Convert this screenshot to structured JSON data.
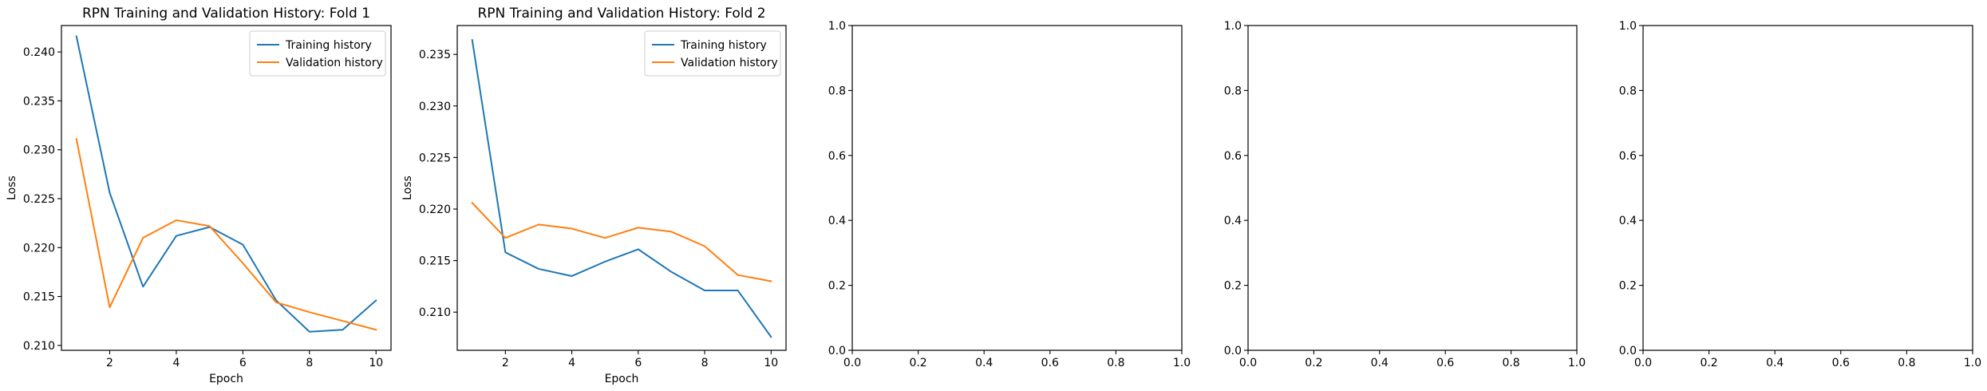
{
  "chart_data": [
    {
      "type": "line",
      "title": "RPN Training and Validation History: Fold 1",
      "xlabel": "Epoch",
      "ylabel": "Loss",
      "xlim": [
        0.55,
        10.45
      ],
      "ylim": [
        0.2095,
        0.2427
      ],
      "xticks": [
        2,
        4,
        6,
        8,
        10
      ],
      "yticks": [
        0.21,
        0.215,
        0.22,
        0.225,
        0.23,
        0.235,
        0.24
      ],
      "ytick_format": 3,
      "legend": "top-right",
      "grid": false,
      "x": [
        1,
        2,
        3,
        4,
        5,
        6,
        7,
        8,
        9,
        10
      ],
      "series": [
        {
          "name": "Training history",
          "color": "#1f77b4",
          "values": [
            0.2416,
            0.2256,
            0.216,
            0.2212,
            0.2221,
            0.2203,
            0.2146,
            0.2114,
            0.2116,
            0.2146
          ]
        },
        {
          "name": "Validation history",
          "color": "#ff7f0e",
          "values": [
            0.2311,
            0.2139,
            0.221,
            0.2228,
            0.2222,
            0.2184,
            0.2144,
            0.2134,
            0.2125,
            0.2116
          ]
        }
      ]
    },
    {
      "type": "line",
      "title": "RPN Training and Validation History: Fold 2",
      "xlabel": "Epoch",
      "ylabel": "Loss",
      "xlim": [
        0.55,
        10.45
      ],
      "ylim": [
        0.2063,
        0.2378
      ],
      "xticks": [
        2,
        4,
        6,
        8,
        10
      ],
      "yticks": [
        0.21,
        0.215,
        0.22,
        0.225,
        0.23,
        0.235
      ],
      "ytick_format": 3,
      "legend": "top-right",
      "grid": false,
      "x": [
        1,
        2,
        3,
        4,
        5,
        6,
        7,
        8,
        9,
        10
      ],
      "series": [
        {
          "name": "Training history",
          "color": "#1f77b4",
          "values": [
            0.2364,
            0.2158,
            0.2142,
            0.2135,
            0.2149,
            0.2161,
            0.2139,
            0.2121,
            0.2121,
            0.2076
          ]
        },
        {
          "name": "Validation history",
          "color": "#ff7f0e",
          "values": [
            0.2206,
            0.2172,
            0.2185,
            0.2181,
            0.2172,
            0.2182,
            0.2178,
            0.2164,
            0.2136,
            0.213
          ]
        }
      ]
    },
    {
      "type": "line",
      "title": "",
      "xlabel": "",
      "ylabel": "",
      "xlim": [
        0,
        1
      ],
      "ylim": [
        0,
        1
      ],
      "xticks": [
        0.0,
        0.2,
        0.4,
        0.6,
        0.8,
        1.0
      ],
      "yticks": [
        0.0,
        0.2,
        0.4,
        0.6,
        0.8,
        1.0
      ],
      "xtick_format": 1,
      "ytick_format": 1,
      "series": []
    },
    {
      "type": "line",
      "title": "",
      "xlabel": "",
      "ylabel": "",
      "xlim": [
        0,
        1
      ],
      "ylim": [
        0,
        1
      ],
      "xticks": [
        0.0,
        0.2,
        0.4,
        0.6,
        0.8,
        1.0
      ],
      "yticks": [
        0.0,
        0.2,
        0.4,
        0.6,
        0.8,
        1.0
      ],
      "xtick_format": 1,
      "ytick_format": 1,
      "series": []
    },
    {
      "type": "line",
      "title": "",
      "xlabel": "",
      "ylabel": "",
      "xlim": [
        0,
        1
      ],
      "ylim": [
        0,
        1
      ],
      "xticks": [
        0.0,
        0.2,
        0.4,
        0.6,
        0.8,
        1.0
      ],
      "yticks": [
        0.0,
        0.2,
        0.4,
        0.6,
        0.8,
        1.0
      ],
      "xtick_format": 1,
      "ytick_format": 1,
      "series": []
    }
  ]
}
